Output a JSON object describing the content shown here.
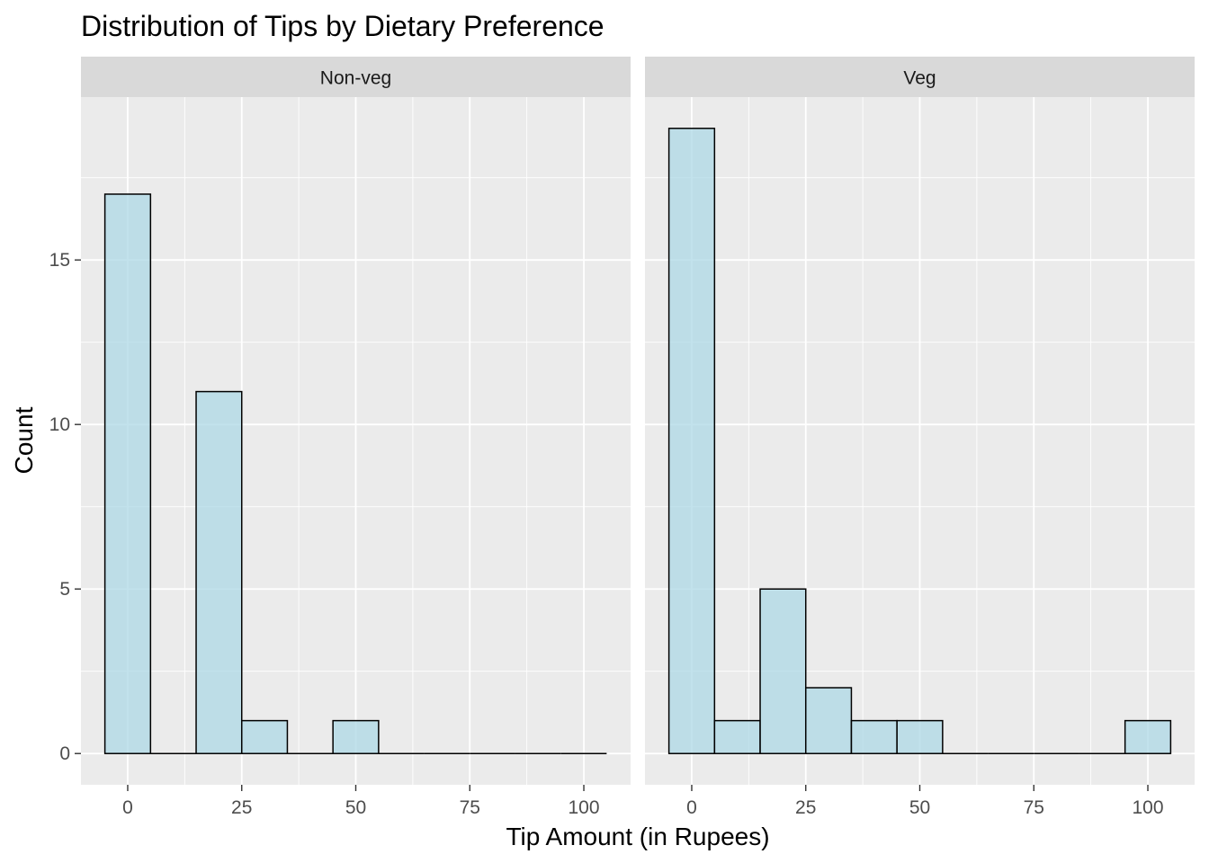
{
  "chart_data": {
    "type": "bar",
    "subtype": "histogram",
    "title": "Distribution of Tips by Dietary Preference",
    "xlabel": "Tip Amount (in Rupees)",
    "ylabel": "Count",
    "xlim": [
      -10.25,
      110.25
    ],
    "ylim": [
      -0.95,
      19.95
    ],
    "x_ticks": [
      0,
      25,
      50,
      75,
      100
    ],
    "y_ticks": [
      0,
      5,
      10,
      15
    ],
    "bin_width": 10,
    "bins": [
      [
        -5,
        5
      ],
      [
        5,
        15
      ],
      [
        15,
        25
      ],
      [
        25,
        35
      ],
      [
        35,
        45
      ],
      [
        45,
        55
      ],
      [
        55,
        65
      ],
      [
        65,
        75
      ],
      [
        75,
        85
      ],
      [
        85,
        95
      ],
      [
        95,
        105
      ]
    ],
    "grid": true,
    "fill_color": "#add8e6",
    "outline_color": "#000000",
    "panel_background": "#ebebeb",
    "strip_background": "#d9d9d9",
    "facets": [
      {
        "label": "Non-veg",
        "counts": [
          17,
          0,
          11,
          1,
          0,
          1,
          0,
          0,
          0,
          0,
          0
        ]
      },
      {
        "label": "Veg",
        "counts": [
          19,
          1,
          5,
          2,
          1,
          1,
          0,
          0,
          0,
          0,
          1
        ]
      }
    ]
  }
}
